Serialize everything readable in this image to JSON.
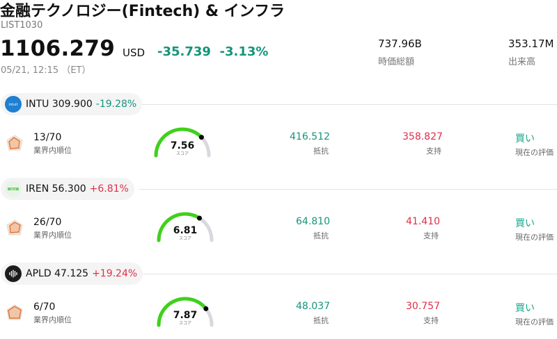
{
  "header": {
    "title": "金融テクノロジー(Fintech) & インフラ",
    "code": "LIST1030",
    "price": "1106.279",
    "currency": "USD",
    "change": "-35.739",
    "change_pct": "-3.13%",
    "timestamp": "05/21, 12:15 （ET）",
    "market_cap": "737.96B",
    "market_cap_label": "時価総額",
    "volume": "353.17M",
    "volume_label": "出来高"
  },
  "labels": {
    "rank": "業界内順位",
    "score": "スコア",
    "resistance": "抵抗",
    "support": "支持",
    "rating": "現在の評価"
  },
  "colors": {
    "up": "#e02e48",
    "down": "#14957a",
    "gauge": "#3fd11a"
  },
  "stocks": [
    {
      "ticker": "INTU",
      "price": "309.900",
      "change_pct": "-19.28%",
      "logo_icon": "intuit-logo-icon",
      "rank": "13/70",
      "score": "7.56",
      "score_value": 7.56,
      "resistance": "416.512",
      "support": "358.827",
      "rating": "買い"
    },
    {
      "ticker": "IREN",
      "price": "56.300",
      "change_pct": "+6.81%",
      "logo_icon": "iren-logo-icon",
      "rank": "26/70",
      "score": "6.81",
      "score_value": 6.81,
      "resistance": "64.810",
      "support": "41.410",
      "rating": "買い"
    },
    {
      "ticker": "APLD",
      "price": "47.125",
      "change_pct": "+19.24%",
      "logo_icon": "apld-logo-icon",
      "rank": "6/70",
      "score": "7.87",
      "score_value": 7.87,
      "resistance": "48.037",
      "support": "30.757",
      "rating": "買い"
    }
  ]
}
